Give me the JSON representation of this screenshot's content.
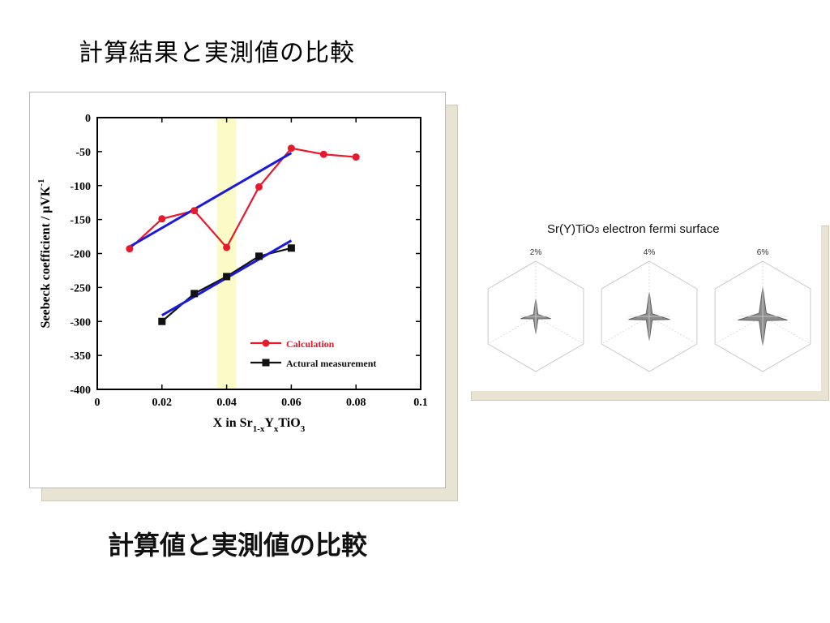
{
  "slide": {
    "title": "計算結果と実測値の比較"
  },
  "chart_card": {
    "caption": "計算値と実測値の比較"
  },
  "chart_data": {
    "type": "line",
    "xlabel": "X in Sr1-xYxTiO3",
    "ylabel": "Seebeck coefficient / μVK-1",
    "xlim": [
      0,
      0.1
    ],
    "ylim": [
      -400,
      0
    ],
    "x_ticks": [
      "0",
      "0.02",
      "0.04",
      "0.06",
      "0.08",
      "0.1"
    ],
    "y_ticks": [
      "0",
      "-50",
      "-100",
      "-150",
      "-200",
      "-250",
      "-300",
      "-350",
      "-400"
    ],
    "highlight_band": {
      "x_from": 0.037,
      "x_to": 0.043,
      "color": "#fbfbc8"
    },
    "legend_position": "lower-right",
    "series": [
      {
        "name": "Calculation",
        "color": "#e8192c",
        "marker": "circle",
        "x": [
          0.01,
          0.02,
          0.03,
          0.04,
          0.05,
          0.06,
          0.07,
          0.08
        ],
        "y": [
          -193,
          -149,
          -137,
          -191,
          -102,
          -45,
          -54,
          -58
        ]
      },
      {
        "name": "Actural measurement",
        "color": "#111111",
        "marker": "square",
        "x": [
          0.02,
          0.03,
          0.04,
          0.05,
          0.06
        ],
        "y": [
          -300,
          -259,
          -234,
          -204,
          -192
        ]
      }
    ],
    "trend_lines": [
      {
        "color": "#1a1adf",
        "x": [
          0.01,
          0.06
        ],
        "y": [
          -190,
          -52
        ]
      },
      {
        "color": "#1a1adf",
        "x": [
          0.02,
          0.06
        ],
        "y": [
          -291,
          -181
        ]
      }
    ]
  },
  "fermi": {
    "title": "Sr(Y)TiO3 electron fermi surface",
    "title_main": "Sr(Y)TiO",
    "title_sub": "3",
    "title_rest": " electron fermi surface",
    "panels": [
      {
        "label": "2%",
        "size": 0.55
      },
      {
        "label": "4%",
        "size": 0.75
      },
      {
        "label": "6%",
        "size": 0.9
      }
    ]
  }
}
